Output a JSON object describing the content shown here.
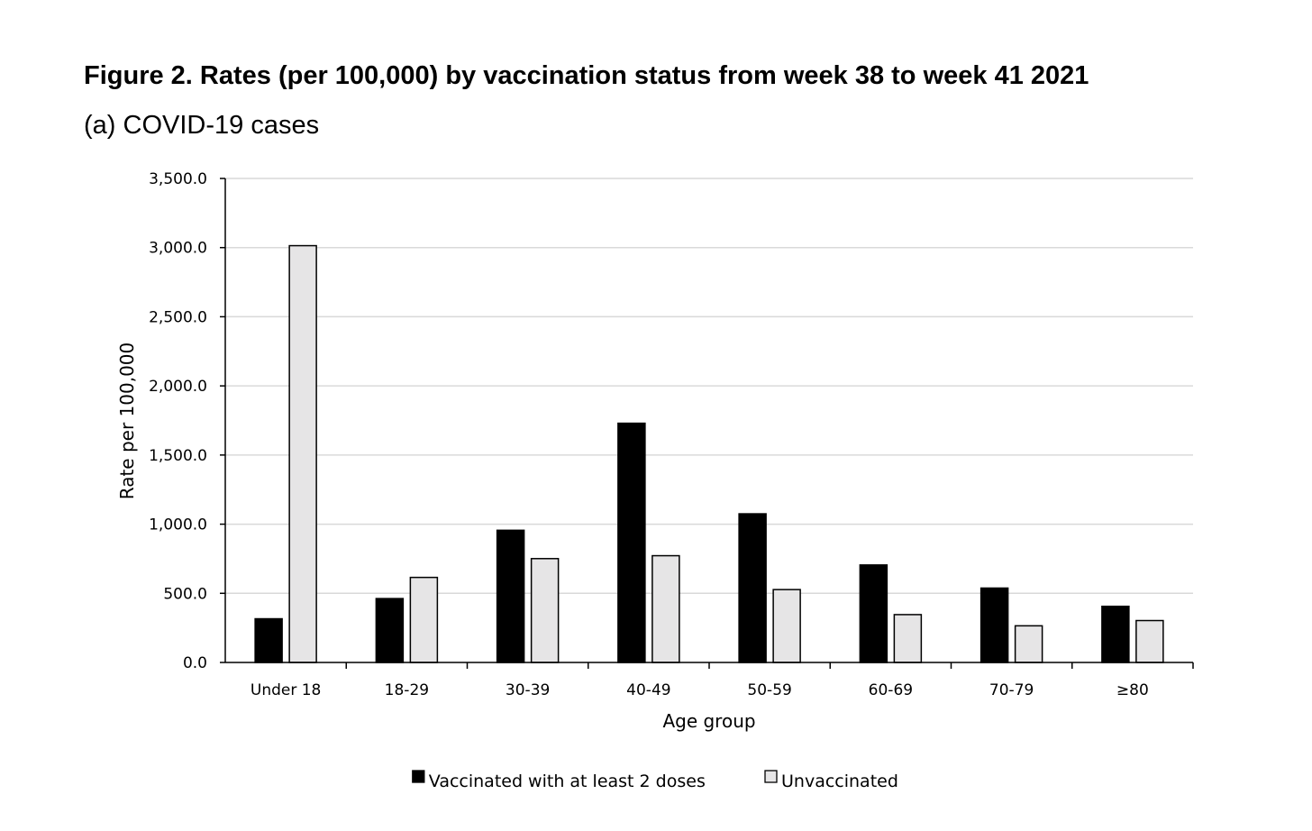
{
  "figure": {
    "title": "Figure 2. Rates (per 100,000) by vaccination status from week 38 to week 41 2021",
    "subtitle": "(a) COVID-19 cases"
  },
  "chart_data": {
    "type": "bar",
    "title": "Figure 2. Rates (per 100,000) by vaccination status from week 38 to week 41 2021",
    "subtitle": "(a) COVID-19 cases",
    "xlabel": "Age group",
    "ylabel": "Rate per 100,000",
    "categories": [
      "Under 18",
      "18-29",
      "30-39",
      "40-49",
      "50-59",
      "60-69",
      "70-79",
      "≥80"
    ],
    "series": [
      {
        "name": "Vaccinated with at least 2 doses",
        "color": "#000000",
        "values": [
          316,
          462,
          956,
          1730,
          1075,
          705,
          538,
          406
        ]
      },
      {
        "name": "Unvaccinated",
        "color": "#e6e5e6",
        "values": [
          3014,
          615,
          751,
          772,
          527,
          346,
          265,
          303
        ]
      }
    ],
    "ylim": [
      0,
      3500
    ],
    "yticks": [
      "0.0",
      "500.0",
      "1,000.0",
      "1,500.0",
      "2,000.0",
      "2,500.0",
      "3,000.0",
      "3,500.0"
    ],
    "grid": true,
    "legend_position": "bottom"
  }
}
